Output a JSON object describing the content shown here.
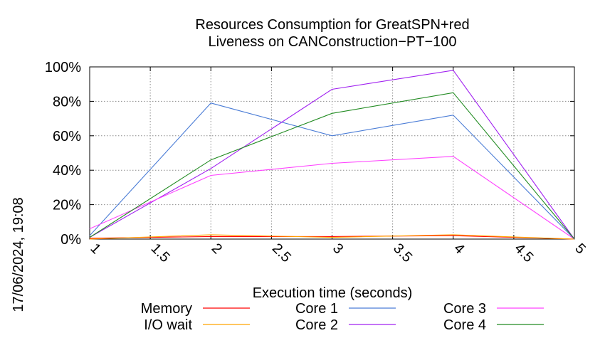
{
  "chart_data": {
    "type": "line",
    "title": [
      "Resources Consumption for GreatSPN+red",
      "Liveness on CANConstruction−PT−100"
    ],
    "xlabel": "Execution time (seconds)",
    "ylabel": "",
    "x": [
      1,
      2,
      3,
      4,
      5
    ],
    "xlim": [
      1,
      5
    ],
    "ylim": [
      0,
      100
    ],
    "xticks": [
      1,
      1.5,
      2,
      2.5,
      3,
      3.5,
      4,
      4.5,
      5
    ],
    "xtick_labels": [
      "1",
      "1.5",
      "2",
      "2.5",
      "3",
      "3.5",
      "4",
      "4.5",
      "5"
    ],
    "yticks": [
      0,
      20,
      40,
      60,
      80,
      100
    ],
    "ytick_labels": [
      "0%",
      "20%",
      "40%",
      "60%",
      "80%",
      "100%"
    ],
    "grid": true,
    "legend_position": "bottom",
    "series": [
      {
        "name": "Memory",
        "color": "#ff0000",
        "values": [
          0.5,
          1.5,
          1.5,
          2.0,
          0
        ]
      },
      {
        "name": "I/O wait",
        "color": "#ffa500",
        "values": [
          0,
          2.5,
          1.0,
          2.5,
          0
        ]
      },
      {
        "name": "Core 1",
        "color": "#4a7cd6",
        "values": [
          2,
          79,
          60,
          72,
          0
        ]
      },
      {
        "name": "Core 2",
        "color": "#a020f0",
        "values": [
          1,
          41,
          87,
          98,
          0
        ]
      },
      {
        "name": "Core 3",
        "color": "#ff40ff",
        "values": [
          6,
          37,
          44,
          48,
          0
        ]
      },
      {
        "name": "Core 4",
        "color": "#228b22",
        "values": [
          1,
          46,
          73,
          85,
          0
        ]
      }
    ]
  },
  "timestamp": "17/06/2024, 19:08"
}
